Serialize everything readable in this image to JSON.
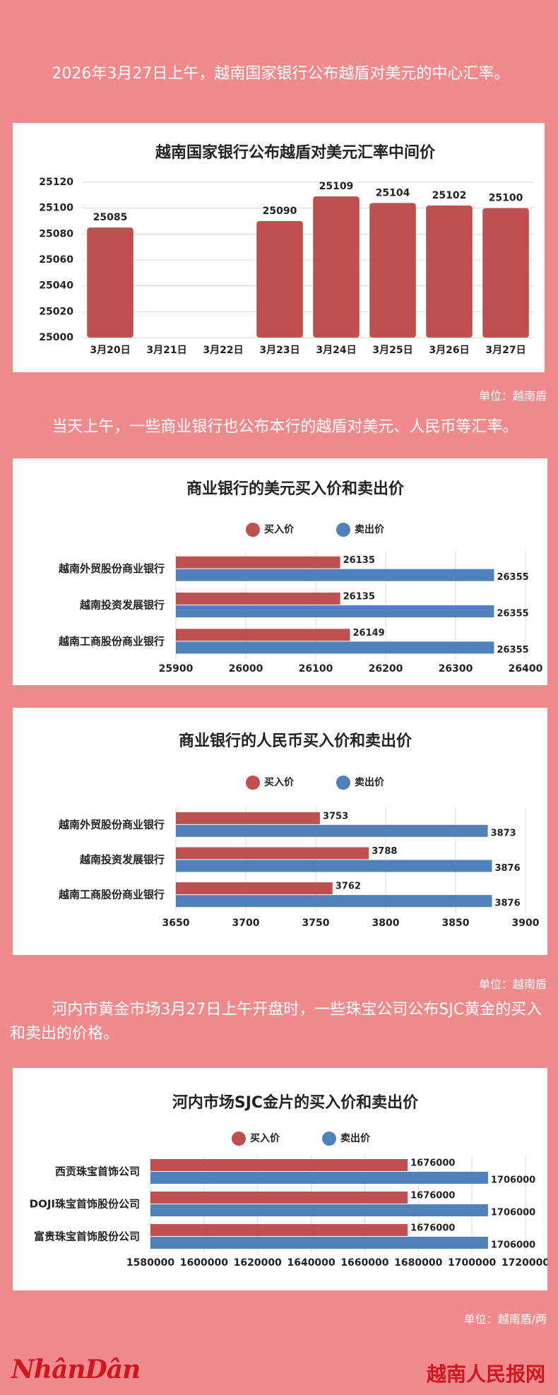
{
  "paragraphs": [
    "2026年3月27日上午，越南国家银行公布越盾对美元的中心汇率。",
    "当天上午，一些商业银行也公布本行的越盾对美元、人民币等汇率。",
    "河内市黄金市场3月27日上午开盘时，一些珠宝公司公布SJC黄金的买入和卖出的价格。"
  ],
  "units": [
    "单位：越南盾",
    "单位：越南盾",
    "单位：越南盾/两"
  ],
  "footer": {
    "logo": "NhânDân",
    "site": "越南人民报网"
  },
  "chart_data": [
    {
      "type": "bar",
      "title": "越南国家银行公布越盾对美元汇率中间价",
      "categories": [
        "3月20日",
        "3月21日",
        "3月22日",
        "3月23日",
        "3月24日",
        "3月25日",
        "3月26日",
        "3月27日"
      ],
      "values": [
        25085,
        null,
        null,
        25090,
        25109,
        25104,
        25102,
        25100
      ],
      "color": "#c0504d",
      "ylim": [
        25000,
        25120
      ],
      "yticks": [
        25000,
        25020,
        25040,
        25060,
        25080,
        25100,
        25120
      ],
      "grid": true
    },
    {
      "type": "barh",
      "title": "商业银行的美元买入价和卖出价",
      "categories": [
        "越南外贸股份商业银行",
        "越南投资发展银行",
        "越南工商股份商业银行"
      ],
      "series": [
        {
          "name": "买入价",
          "color": "#c0504d",
          "values": [
            26135,
            26135,
            26149
          ]
        },
        {
          "name": "卖出价",
          "color": "#4f81bd",
          "values": [
            26355,
            26355,
            26355
          ]
        }
      ],
      "xlim": [
        25900,
        26400
      ],
      "xticks": [
        25900,
        26000,
        26100,
        26200,
        26300,
        26400
      ],
      "grid": true,
      "legend": "top"
    },
    {
      "type": "barh",
      "title": "商业银行的人民币买入价和卖出价",
      "categories": [
        "越南外贸股份商业银行",
        "越南投资发展银行",
        "越南工商股份商业银行"
      ],
      "series": [
        {
          "name": "买入价",
          "color": "#c0504d",
          "values": [
            3753,
            3788,
            3762
          ]
        },
        {
          "name": "卖出价",
          "color": "#4f81bd",
          "values": [
            3873,
            3876,
            3876
          ]
        }
      ],
      "xlim": [
        3650,
        3900
      ],
      "xticks": [
        3650,
        3700,
        3750,
        3800,
        3850,
        3900
      ],
      "grid": true,
      "legend": "top"
    },
    {
      "type": "barh",
      "title": "河内市场SJC金片的买入价和卖出价",
      "categories": [
        "西贡珠宝首饰公司",
        "DOJI珠宝首饰股份公司",
        "富贵珠宝首饰股份公司"
      ],
      "series": [
        {
          "name": "买入价",
          "color": "#c0504d",
          "values": [
            1676000,
            1676000,
            1676000
          ]
        },
        {
          "name": "卖出价",
          "color": "#4f81bd",
          "values": [
            1706000,
            1706000,
            1706000
          ]
        }
      ],
      "xlim": [
        1580000,
        1720000
      ],
      "xticks": [
        1580000,
        1600000,
        1620000,
        1640000,
        1660000,
        1680000,
        1700000,
        1720000
      ],
      "grid": true,
      "legend": "top"
    }
  ]
}
